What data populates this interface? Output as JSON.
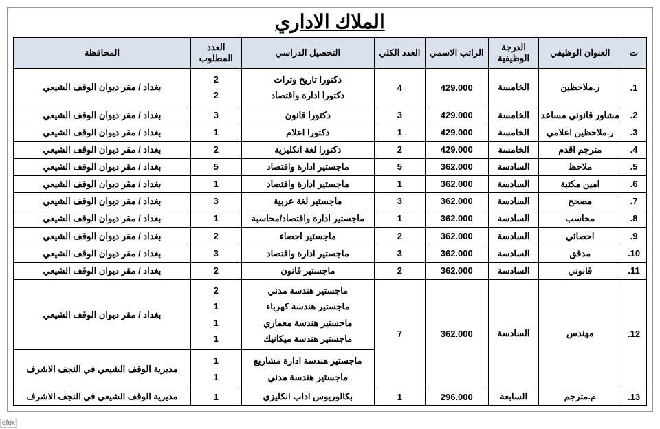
{
  "title": "الملاك الاداري",
  "tag": "efox",
  "header_bg": "#d9e2ec",
  "border_color": "#000000",
  "font_family": "Traditional Arabic",
  "columns": {
    "t": "ت",
    "job_title": "العنوان الوظيفي",
    "grade": "الدرجة الوظيفية",
    "salary": "الراتب الاسمي",
    "total": "العدد الكلي",
    "education": "التحصيل الدراسي",
    "required": "العدد المطلوب",
    "governorate": "المحافظة"
  },
  "rows": [
    {
      "t": "1.",
      "job_title": "ر.ملاحظين",
      "grade": "الخامسة",
      "salary": "429.000",
      "total": "4",
      "education": "دكتورا تاريخ وتراث\nدكتورا ادارة واقتصاد",
      "required": "2\n2",
      "governorate": "بغداد / مقر ديوان الوقف الشيعي"
    },
    {
      "t": "2.",
      "job_title": "مشاور قانوني مساعد",
      "grade": "الخامسة",
      "salary": "429.000",
      "total": "3",
      "education": "دكتورا قانون",
      "required": "3",
      "governorate": "بغداد / مقر ديوان الوقف الشيعي"
    },
    {
      "t": "3.",
      "job_title": "ر.ملاحظين اعلامي",
      "grade": "الخامسة",
      "salary": "429.000",
      "total": "1",
      "education": "دكتورا اعلام",
      "required": "1",
      "governorate": "بغداد / مقر ديوان الوقف الشيعي"
    },
    {
      "t": "4.",
      "job_title": "مترجم اقدم",
      "grade": "الخامسة",
      "salary": "429.000",
      "total": "2",
      "education": "دكتورا لغة انكليزية",
      "required": "2",
      "governorate": "بغداد / مقر ديوان الوقف الشيعي"
    },
    {
      "t": "5.",
      "job_title": "ملاحظ",
      "grade": "السادسة",
      "salary": "362.000",
      "total": "5",
      "education": "ماجستير ادارة واقتصاد",
      "required": "5",
      "governorate": "بغداد / مقر ديوان الوقف الشيعي"
    },
    {
      "t": "6.",
      "job_title": "امين مكتبة",
      "grade": "السادسة",
      "salary": "362.000",
      "total": "1",
      "education": "ماجستير ادارة واقتصاد",
      "required": "1",
      "governorate": "بغداد / مقر ديوان الوقف الشيعي"
    },
    {
      "t": "7.",
      "job_title": "مصحح",
      "grade": "السادسة",
      "salary": "362.000",
      "total": "3",
      "education": "ماجستير لغة عربية",
      "required": "3",
      "governorate": "بغداد / مقر ديوان الوقف الشيعي"
    },
    {
      "t": "8.",
      "job_title": "محاسب",
      "grade": "السادسة",
      "salary": "362.000",
      "total": "1",
      "education": "ماجستير ادارة واقتصاد/محاسبة",
      "required": "1",
      "governorate": "بغداد / مقر ديوان الوقف الشيعي"
    },
    {
      "t": "9.",
      "job_title": "احصائي",
      "grade": "السادسة",
      "salary": "362.000",
      "total": "2",
      "education": "ماجستير احصاء",
      "required": "2",
      "governorate": "بغداد / مقر ديوان الوقف الشيعي"
    },
    {
      "t": "10.",
      "job_title": "مدقق",
      "grade": "السادسة",
      "salary": "362.000",
      "total": "3",
      "education": "ماجستير ادارة واقتصاد",
      "required": "3",
      "governorate": "بغداد / مقر ديوان الوقف الشيعي"
    },
    {
      "t": "11.",
      "job_title": "قانوني",
      "grade": "السادسة",
      "salary": "362.000",
      "total": "2",
      "education": "ماجستير قانون",
      "required": "2",
      "governorate": "بغداد / مقر ديوان الوقف الشيعي"
    },
    {
      "t": "12.",
      "job_title": "مهندس",
      "grade": "السادسة",
      "salary": "362.000",
      "total": "7",
      "education_a": "ماجستير هندسة مدني\nماجستير هندسة كهرباء\nماجستير هندسة معماري\nماجستير هندسة ميكانيك",
      "required_a": "2\n1\n1\n1",
      "governorate_a": "بغداد / مقر ديوان الوقف الشيعي",
      "education_b": "ماجستير هندسة ادارة مشاريع\nماجستير هندسة مدني",
      "required_b": "1\n1",
      "governorate_b": "مديرية الوقف الشيعي في النجف الاشرف"
    },
    {
      "t": "13.",
      "job_title": "م.مترجم",
      "grade": "السابعة",
      "salary": "296.000",
      "total": "1",
      "education": "بكالوريوس اداب انكليزي",
      "required": "1",
      "governorate": "مديرية الوقف الشيعي في النجف الاشرف"
    }
  ]
}
